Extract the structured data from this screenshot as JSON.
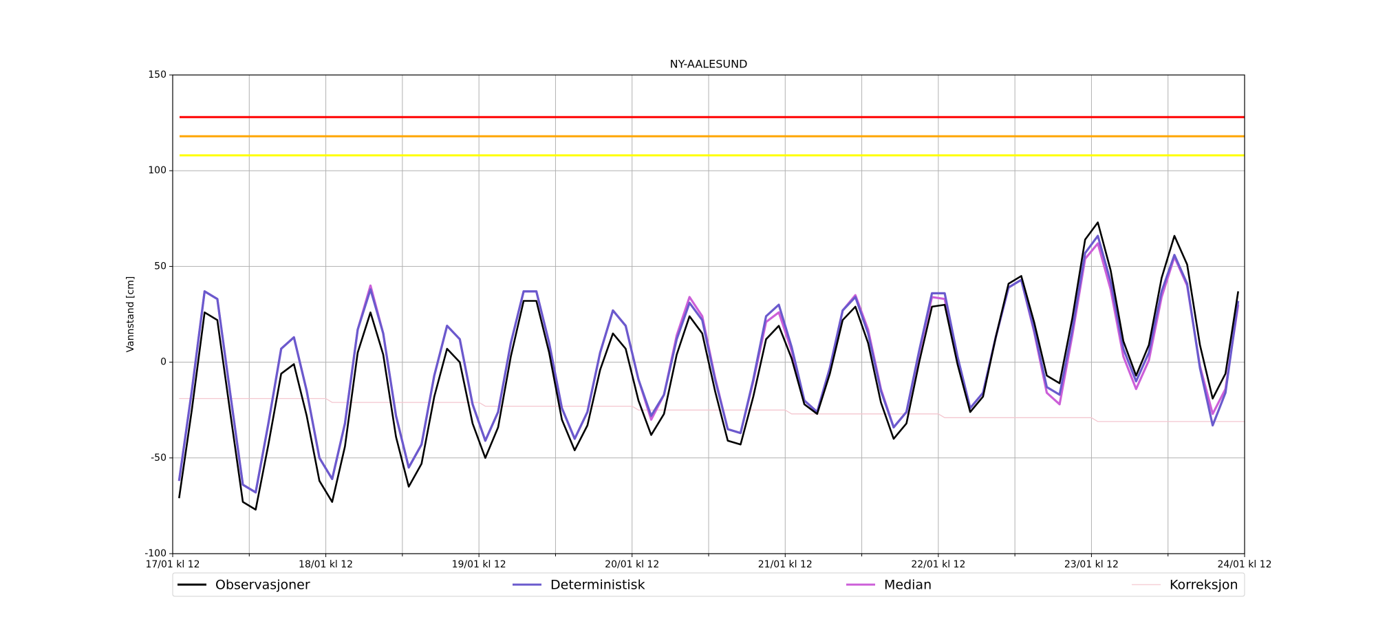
{
  "chart_data": {
    "type": "line",
    "title": "NY-AALESUND",
    "ylabel": "Vannstand [cm]",
    "ylim": [
      -100,
      150
    ],
    "yticks": [
      -100,
      -50,
      0,
      50,
      100,
      150
    ],
    "xlim": [
      0,
      168
    ],
    "xticks": [
      {
        "value": 0,
        "label": "17/01 kl 12"
      },
      {
        "value": 24,
        "label": "18/01 kl 12"
      },
      {
        "value": 48,
        "label": "19/01 kl 12"
      },
      {
        "value": 72,
        "label": "20/01 kl 12"
      },
      {
        "value": 96,
        "label": "21/01 kl 12"
      },
      {
        "value": 120,
        "label": "22/01 kl 12"
      },
      {
        "value": 144,
        "label": "23/01 kl 12"
      },
      {
        "value": 168,
        "label": "24/01 kl 12"
      }
    ],
    "xminor_ticks": [
      12,
      36,
      60,
      84,
      108,
      132,
      156
    ],
    "grid": true,
    "legend": "bottom",
    "hlines": [
      {
        "value": 128,
        "color": "#ff0000"
      },
      {
        "value": 118,
        "color": "#ffa500"
      },
      {
        "value": 108,
        "color": "#ffff00"
      }
    ],
    "x": [
      1,
      3,
      5,
      7,
      9,
      11,
      13,
      15,
      17,
      19,
      21,
      23,
      25,
      27,
      29,
      31,
      33,
      35,
      37,
      39,
      41,
      43,
      45,
      47,
      49,
      51,
      53,
      55,
      57,
      59,
      61,
      63,
      65,
      67,
      69,
      71,
      73,
      75,
      77,
      79,
      81,
      83,
      85,
      87,
      89,
      91,
      93,
      95,
      97,
      99,
      101,
      103,
      105,
      107,
      109,
      111,
      113,
      115,
      117,
      119,
      121,
      123,
      125,
      127,
      129,
      131,
      133,
      135,
      137,
      139,
      141,
      143,
      145,
      147,
      149,
      151,
      153,
      155,
      157,
      159,
      161,
      163,
      165,
      167
    ],
    "series": [
      {
        "name": "Observasjoner",
        "color": "#000000",
        "values": [
          -71,
          -25,
          26,
          22,
          -26,
          -73,
          -77,
          -43,
          -6,
          -1,
          -28,
          -62,
          -73,
          -44,
          5,
          26,
          4,
          -39,
          -65,
          -53,
          -18,
          7,
          0,
          -32,
          -50,
          -34,
          3,
          32,
          32,
          5,
          -30,
          -46,
          -33,
          -4,
          15,
          7,
          -20,
          -38,
          -27,
          4,
          24,
          15,
          -15,
          -41,
          -43,
          -18,
          12,
          19,
          2,
          -22,
          -27,
          -6,
          22,
          29,
          10,
          -21,
          -40,
          -32,
          0,
          29,
          30,
          -1,
          -26,
          -18,
          13,
          41,
          45,
          21,
          -7,
          -11,
          23,
          64,
          73,
          48,
          11,
          -7,
          9,
          44,
          66,
          51,
          9,
          -19,
          -6,
          37
        ]
      },
      {
        "name": "Deterministisk",
        "color": "#6a5acd",
        "values": [
          -62,
          -15,
          37,
          33,
          -16,
          -64,
          -68,
          -32,
          7,
          13,
          -15,
          -50,
          -61,
          -32,
          17,
          38,
          15,
          -28,
          -55,
          -43,
          -7,
          19,
          12,
          -22,
          -41,
          -26,
          10,
          37,
          37,
          10,
          -24,
          -40,
          -26,
          5,
          27,
          19,
          -9,
          -28,
          -17,
          12,
          31,
          22,
          -9,
          -35,
          -37,
          -9,
          24,
          30,
          8,
          -20,
          -26,
          -3,
          27,
          34,
          15,
          -15,
          -34,
          -26,
          6,
          36,
          36,
          3,
          -24,
          -16,
          13,
          39,
          43,
          17,
          -13,
          -17,
          17,
          57,
          66,
          42,
          7,
          -10,
          5,
          37,
          56,
          41,
          -3,
          -33,
          -16,
          32
        ]
      },
      {
        "name": "Median",
        "color": "#cc5fd8",
        "values": [
          -62,
          -15,
          37,
          33,
          -16,
          -64,
          -68,
          -32,
          7,
          13,
          -15,
          -50,
          -61,
          -32,
          17,
          40,
          15,
          -28,
          -55,
          -43,
          -7,
          19,
          12,
          -22,
          -41,
          -26,
          10,
          37,
          37,
          10,
          -24,
          -40,
          -26,
          5,
          27,
          19,
          -9,
          -30,
          -17,
          14,
          34,
          24,
          -8,
          -35,
          -37,
          -10,
          21,
          26,
          6,
          -20,
          -26,
          -3,
          27,
          35,
          17,
          -14,
          -34,
          -26,
          5,
          34,
          33,
          2,
          -24,
          -16,
          13,
          39,
          43,
          16,
          -16,
          -22,
          14,
          54,
          62,
          38,
          3,
          -14,
          1,
          34,
          55,
          40,
          -2,
          -27,
          -14,
          30
        ]
      },
      {
        "name": "Korreksjon",
        "color": "#f4c6cf",
        "x": [
          1,
          24,
          25,
          48,
          49,
          72,
          73,
          96,
          97,
          120,
          121,
          144,
          145,
          168
        ],
        "values": [
          -19,
          -19,
          -21,
          -21,
          -23,
          -23,
          -25,
          -25,
          -27,
          -27,
          -29,
          -29,
          -31,
          -31
        ]
      }
    ]
  }
}
